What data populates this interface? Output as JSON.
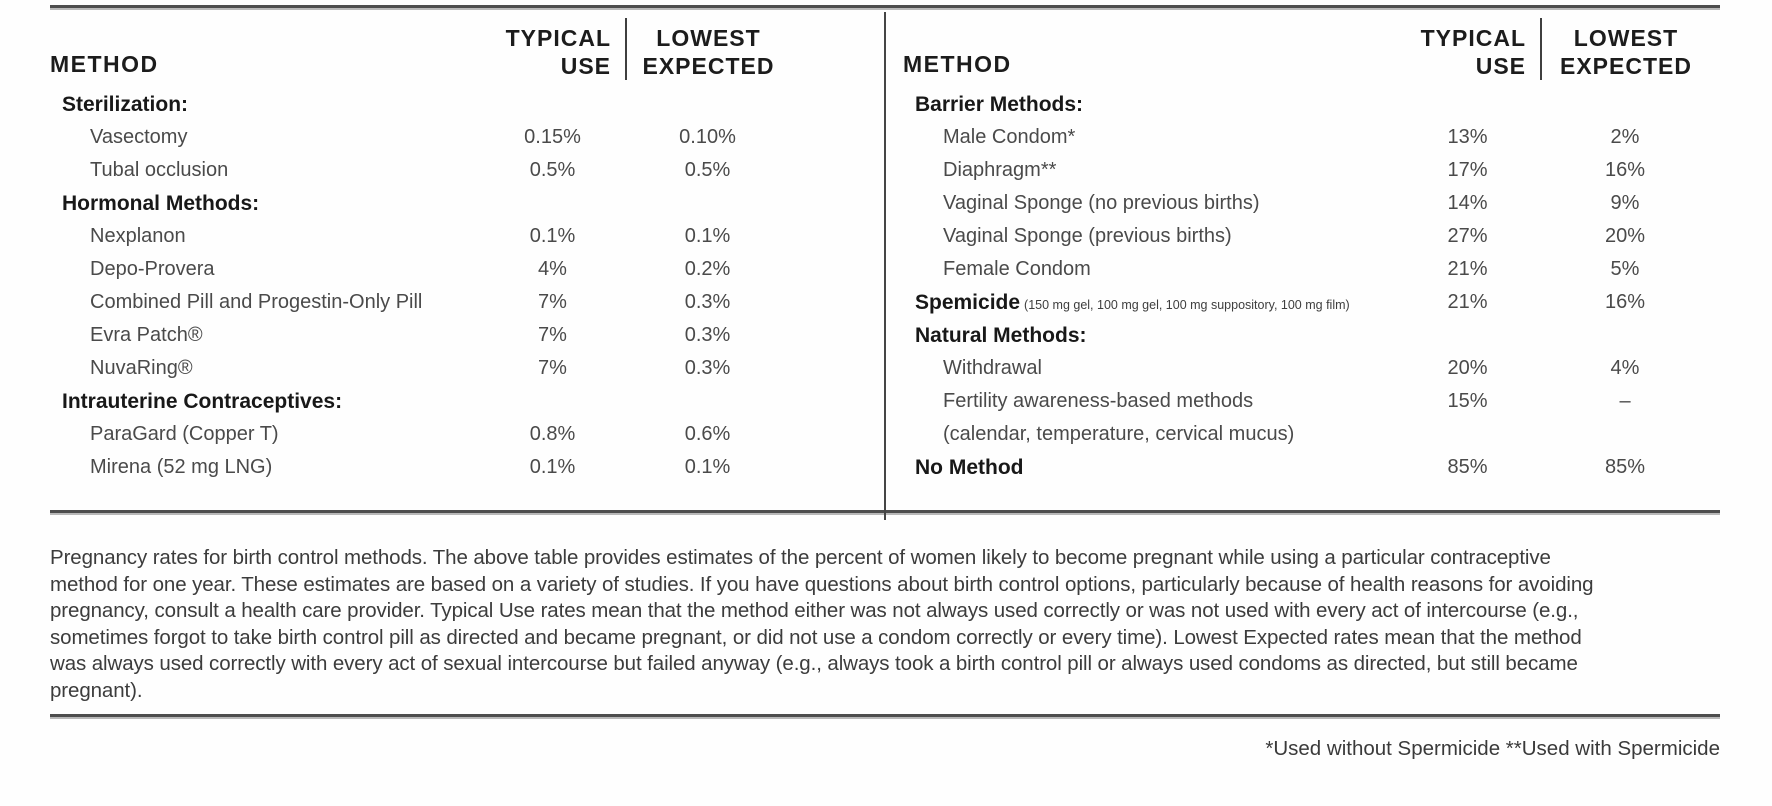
{
  "document": {
    "tables": [
      {
        "header": {
          "method": "METHOD",
          "typical": [
            "TYPICAL",
            "USE"
          ],
          "lowest": [
            "LOWEST",
            "EXPECTED"
          ]
        },
        "rows": [
          {
            "label": "Sterilization:",
            "bold": true
          },
          {
            "label": "Vasectomy",
            "typical": "0.15%",
            "lowest": "0.10%",
            "indent": true
          },
          {
            "label": "Tubal occlusion",
            "typical": "0.5%",
            "lowest": "0.5%",
            "indent": true
          },
          {
            "label": "Hormonal Methods:",
            "bold": true
          },
          {
            "label": "Nexplanon",
            "typical": "0.1%",
            "lowest": "0.1%",
            "indent": true
          },
          {
            "label": "Depo-Provera",
            "typical": "4%",
            "lowest": "0.2%",
            "indent": true
          },
          {
            "label": "Combined Pill and Progestin-Only Pill",
            "typical": "7%",
            "lowest": "0.3%",
            "indent": true
          },
          {
            "label": "Evra Patch®",
            "typical": "7%",
            "lowest": "0.3%",
            "indent": true
          },
          {
            "label": "NuvaRing®",
            "typical": "7%",
            "lowest": "0.3%",
            "indent": true
          },
          {
            "label": "Intrauterine Contraceptives:",
            "bold": true
          },
          {
            "label": "ParaGard (Copper T)",
            "typical": "0.8%",
            "lowest": "0.6%",
            "indent": true
          },
          {
            "label": "Mirena (52 mg LNG)",
            "typical": "0.1%",
            "lowest": "0.1%",
            "indent": true
          }
        ]
      },
      {
        "header": {
          "method": "METHOD",
          "typical": [
            "TYPICAL",
            "USE"
          ],
          "lowest": [
            "LOWEST",
            "EXPECTED"
          ]
        },
        "rows": [
          {
            "label": "Barrier Methods:",
            "bold": true
          },
          {
            "label": "Male Condom*",
            "typical": "13%",
            "lowest": "2%",
            "indent": true
          },
          {
            "label": "Diaphragm**",
            "typical": "17%",
            "lowest": "16%",
            "indent": true
          },
          {
            "label": "Vaginal Sponge (no previous births)",
            "typical": "14%",
            "lowest": "9%",
            "indent": true
          },
          {
            "label": "Vaginal Sponge (previous births)",
            "typical": "27%",
            "lowest": "20%",
            "indent": true
          },
          {
            "label": "Female Condom",
            "typical": "21%",
            "lowest": "5%",
            "indent": true
          },
          {
            "label": "Spemicide",
            "small": "(150 mg gel, 100 mg gel, 100 mg suppository, 100 mg film)",
            "typical": "21%",
            "lowest": "16%",
            "bold": true
          },
          {
            "label": "Natural Methods:",
            "bold": true
          },
          {
            "label": "Withdrawal",
            "typical": "20%",
            "lowest": "4%",
            "indent": true
          },
          {
            "label": "Fertility awareness-based methods",
            "typical": "15%",
            "lowest": "–",
            "indent": true
          },
          {
            "label": "(calendar, temperature, cervical mucus)",
            "indent": true
          },
          {
            "label": "No Method",
            "typical": "85%",
            "lowest": "85%",
            "bold": true
          }
        ]
      }
    ],
    "description": "Pregnancy rates for birth control methods. The above table provides estimates of the percent of women likely to become pregnant while using a particular contraceptive method for one year. These estimates are based on a variety of studies. If you have questions about birth control options, particularly because of health reasons for avoiding pregnancy, consult a health care provider. Typical Use rates mean that the method either was not always used correctly or was not used with every act of intercourse (e.g., sometimes forgot to take birth control pill as directed and became pregnant, or did not use a condom correctly or every time). Lowest Expected rates mean that the method was always used correctly with every act of sexual intercourse but failed anyway (e.g., always took a birth control pill or always used condoms as directed, but still became pregnant).",
    "footnote": "*Used without Spermicide **Used with Spermicide"
  },
  "colors": {
    "text_dark": "#1c1c1c",
    "text_gray": "#4a4a4a",
    "rule": "#4d4d4d",
    "background": "#fefefe"
  }
}
